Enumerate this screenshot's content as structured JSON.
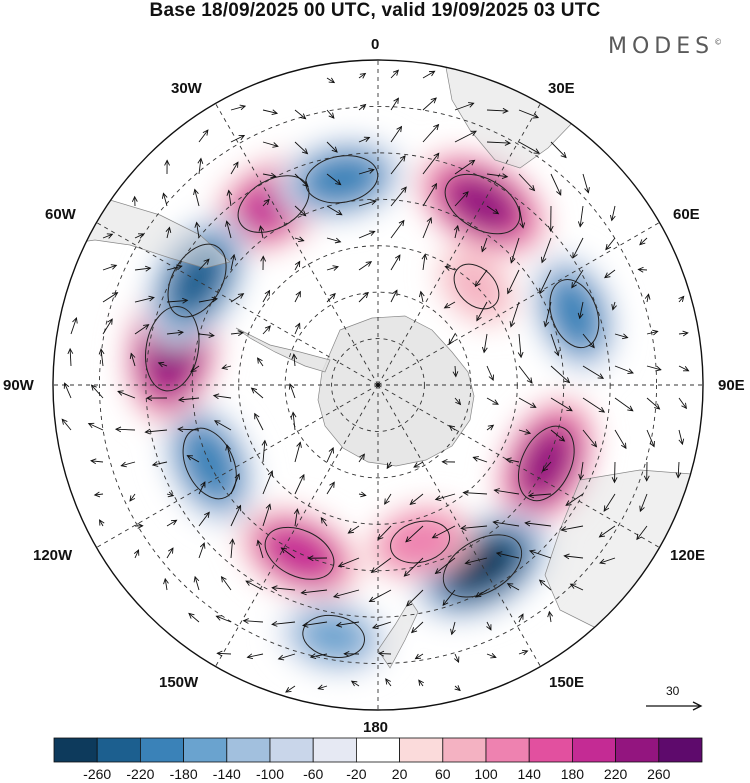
{
  "title": "Base 18/09/2025 00 UTC, valid 19/09/2025 03 UTC",
  "brand": "MODES",
  "brand_mark": "©",
  "longitude_labels": {
    "lon_0": "0",
    "lon_30e": "30E",
    "lon_60e": "60E",
    "lon_90e": "90E",
    "lon_120e": "120E",
    "lon_150e": "150E",
    "lon_180": "180",
    "lon_150w": "150W",
    "lon_120w": "120W",
    "lon_90w": "90W",
    "lon_60w": "60W",
    "lon_30w": "30W"
  },
  "vector_scale": {
    "value": "30"
  },
  "colorbar": {
    "colors": [
      "#0d3a5c",
      "#1c5f8f",
      "#3a82b8",
      "#6aa3cf",
      "#a2c0de",
      "#c9d6ea",
      "#e6e9f3",
      "#ffffff",
      "#fbdbdb",
      "#f4b2c2",
      "#ee82b0",
      "#e2509f",
      "#c42b94",
      "#93157f",
      "#5e0a6c"
    ],
    "ticks": [
      "-260",
      "-220",
      "-180",
      "-140",
      "-100",
      "-60",
      "-20",
      "20",
      "60",
      "100",
      "140",
      "180",
      "220",
      "260"
    ]
  },
  "anomaly_centers": [
    {
      "lon": -30,
      "lat": -45,
      "value": 220
    },
    {
      "lon": -10,
      "lat": -45,
      "value": -200
    },
    {
      "lon": 30,
      "lat": -45,
      "value": 240
    },
    {
      "lon": 45,
      "lat": -60,
      "value": 100
    },
    {
      "lon": 70,
      "lat": -45,
      "value": -190
    },
    {
      "lon": 115,
      "lat": -50,
      "value": 230
    },
    {
      "lon": 150,
      "lat": -45,
      "value": -260
    },
    {
      "lon": 165,
      "lat": -55,
      "value": 140
    },
    {
      "lon": -155,
      "lat": -50,
      "value": 200
    },
    {
      "lon": -170,
      "lat": -35,
      "value": -150
    },
    {
      "lon": -115,
      "lat": -50,
      "value": -210
    },
    {
      "lon": -80,
      "lat": -45,
      "value": 260
    },
    {
      "lon": -60,
      "lat": -45,
      "value": -230
    }
  ]
}
